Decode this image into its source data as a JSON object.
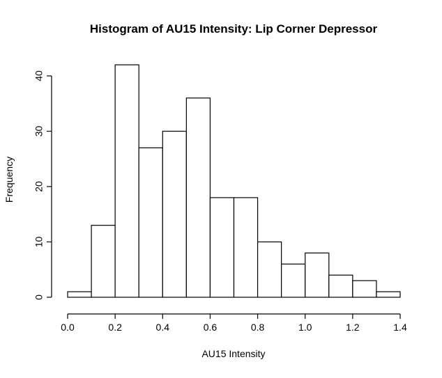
{
  "chart_data": {
    "type": "bar",
    "title": "Histogram of AU15 Intensity: Lip Corner Depressor",
    "xlabel": "AU15 Intensity",
    "ylabel": "Frequency",
    "bins": [
      {
        "start": 0.0,
        "end": 0.1,
        "count": 1
      },
      {
        "start": 0.1,
        "end": 0.2,
        "count": 13
      },
      {
        "start": 0.2,
        "end": 0.3,
        "count": 42
      },
      {
        "start": 0.3,
        "end": 0.4,
        "count": 27
      },
      {
        "start": 0.4,
        "end": 0.5,
        "count": 30
      },
      {
        "start": 0.5,
        "end": 0.6,
        "count": 36
      },
      {
        "start": 0.6,
        "end": 0.7,
        "count": 18
      },
      {
        "start": 0.7,
        "end": 0.8,
        "count": 18
      },
      {
        "start": 0.8,
        "end": 0.9,
        "count": 10
      },
      {
        "start": 0.9,
        "end": 1.0,
        "count": 6
      },
      {
        "start": 1.0,
        "end": 1.1,
        "count": 8
      },
      {
        "start": 1.1,
        "end": 1.2,
        "count": 4
      },
      {
        "start": 1.2,
        "end": 1.3,
        "count": 3
      },
      {
        "start": 1.3,
        "end": 1.4,
        "count": 1
      }
    ],
    "xlim": [
      0.0,
      1.4
    ],
    "ylim": [
      0,
      40
    ],
    "xticks": [
      "0.0",
      "0.2",
      "0.4",
      "0.6",
      "0.8",
      "1.0",
      "1.2",
      "1.4"
    ],
    "yticks": [
      "0",
      "10",
      "20",
      "30",
      "40"
    ],
    "bar_fill": "#ffffff",
    "bar_stroke": "#000000",
    "grid": false,
    "legend": "none"
  }
}
